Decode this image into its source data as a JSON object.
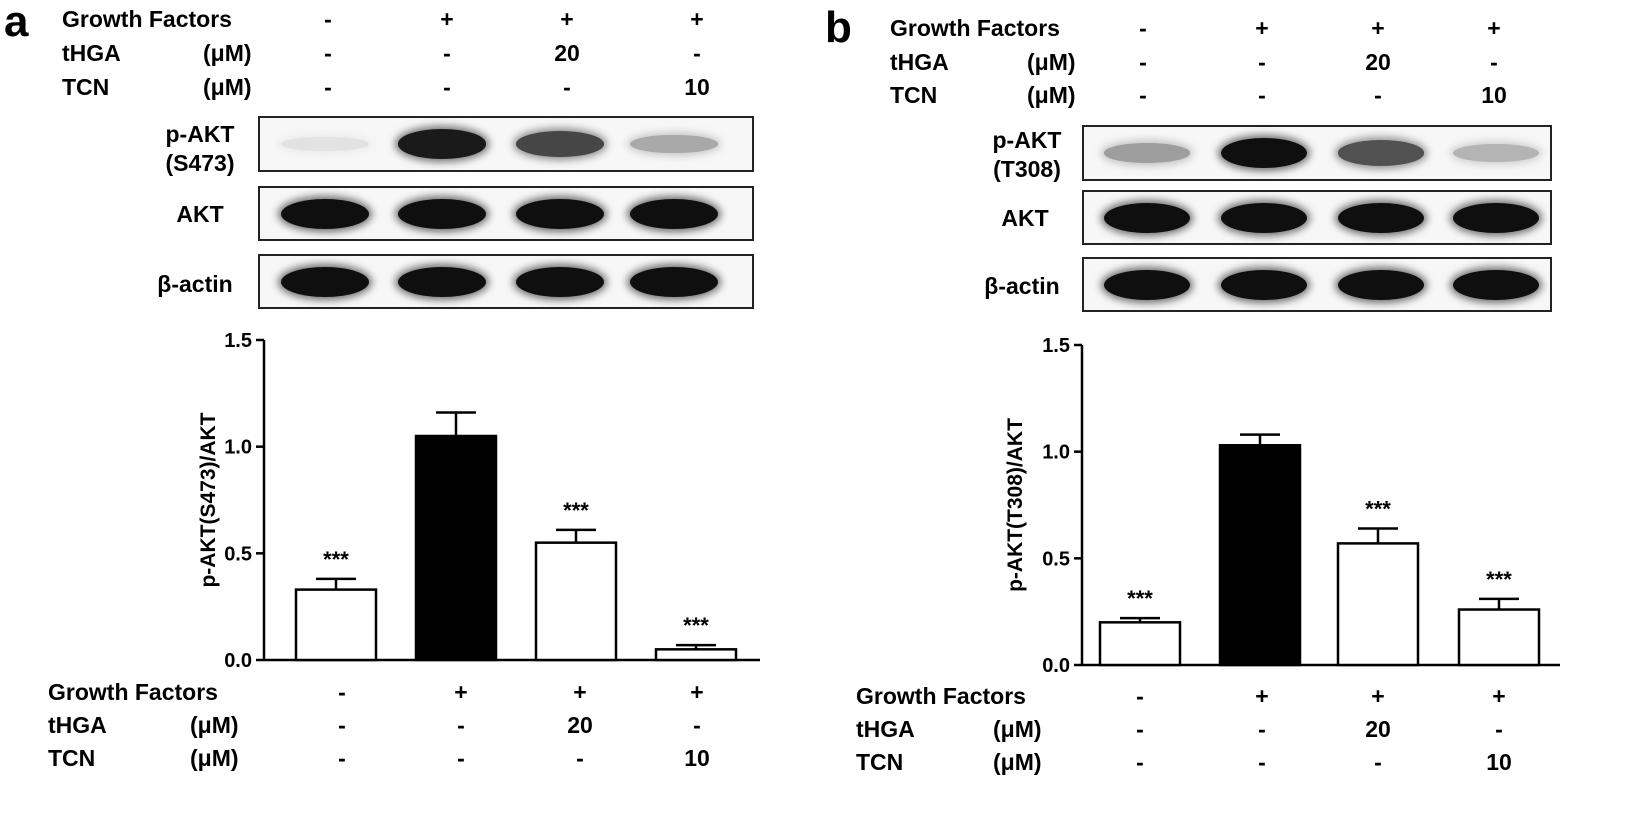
{
  "panels": [
    {
      "letter": "a",
      "treatments": {
        "rows": [
          {
            "label": "Growth Factors",
            "unit": "",
            "values": [
              "-",
              "+",
              "+",
              "+"
            ]
          },
          {
            "label": "tHGA",
            "unit": "(μM)",
            "values": [
              "-",
              "-",
              "20",
              "-"
            ]
          },
          {
            "label": "TCN",
            "unit": "(μM)",
            "values": [
              "-",
              "-",
              "-",
              "10"
            ]
          }
        ]
      },
      "blots": [
        {
          "label": "p-AKT\n(S473)",
          "intensities": [
            0.04,
            0.95,
            0.75,
            0.3
          ]
        },
        {
          "label": "AKT",
          "intensities": [
            1,
            1,
            1,
            1
          ]
        },
        {
          "label": "β-actin",
          "intensities": [
            1,
            1,
            1,
            1
          ]
        }
      ],
      "chart_data": {
        "type": "bar",
        "ylabel": "p-AKT(S473)/AKT",
        "ylim": [
          0,
          1.5
        ],
        "yticks": [
          "0.0",
          "0.5",
          "1.0",
          "1.5"
        ],
        "values": [
          0.33,
          1.05,
          0.55,
          0.05
        ],
        "errors": [
          0.05,
          0.11,
          0.06,
          0.02
        ],
        "fill": [
          "#ffffff",
          "#000000",
          "#ffffff",
          "#ffffff"
        ],
        "significance": [
          "***",
          "",
          "***",
          "***"
        ]
      }
    },
    {
      "letter": "b",
      "treatments": {
        "rows": [
          {
            "label": "Growth Factors",
            "unit": "",
            "values": [
              "-",
              "+",
              "+",
              "+"
            ]
          },
          {
            "label": "tHGA",
            "unit": "(μM)",
            "values": [
              "-",
              "-",
              "20",
              "-"
            ]
          },
          {
            "label": "TCN",
            "unit": "(μM)",
            "values": [
              "-",
              "-",
              "-",
              "10"
            ]
          }
        ]
      },
      "blots": [
        {
          "label": "p-AKT\n(T308)",
          "intensities": [
            0.35,
            1.0,
            0.7,
            0.25
          ]
        },
        {
          "label": "AKT",
          "intensities": [
            1,
            1,
            1,
            1
          ]
        },
        {
          "label": "β-actin",
          "intensities": [
            1,
            1,
            1,
            1
          ]
        }
      ],
      "chart_data": {
        "type": "bar",
        "ylabel": "p-AKT(T308)/AKT",
        "ylim": [
          0,
          1.5
        ],
        "yticks": [
          "0.0",
          "0.5",
          "1.0",
          "1.5"
        ],
        "values": [
          0.2,
          1.03,
          0.57,
          0.26
        ],
        "errors": [
          0.02,
          0.05,
          0.07,
          0.05
        ],
        "fill": [
          "#ffffff",
          "#000000",
          "#ffffff",
          "#ffffff"
        ],
        "significance": [
          "***",
          "",
          "***",
          "***"
        ]
      }
    }
  ]
}
